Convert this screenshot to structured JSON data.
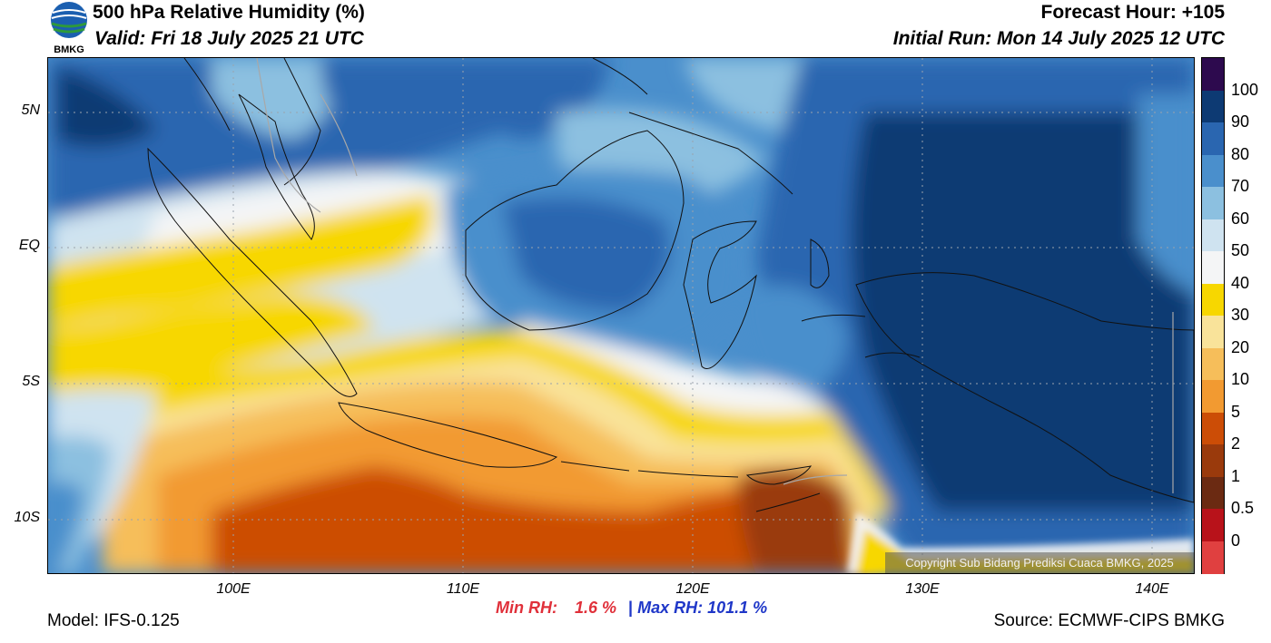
{
  "header": {
    "title": "500 hPa Relative Humidity (%)",
    "valid": "Valid: Fri 18 July 2025 21 UTC",
    "forecast_hour": "Forecast Hour: +105",
    "initial_run": "Initial Run: Mon 14 July 2025 12 UTC"
  },
  "logo": {
    "text": "BMKG",
    "icon": "bmkg-logo-icon"
  },
  "axes": {
    "lat_labels": [
      "5N",
      "EQ",
      "5S",
      "10S"
    ],
    "lon_labels": [
      "100E",
      "110E",
      "120E",
      "130E",
      "140E"
    ]
  },
  "colorbar": {
    "levels": [
      "100",
      "90",
      "80",
      "70",
      "60",
      "50",
      "40",
      "30",
      "20",
      "10",
      "5",
      "2",
      "1",
      "0.5",
      "0"
    ],
    "colors": [
      "#2d0a4e",
      "#0d3a73",
      "#2a66b0",
      "#4a8fcc",
      "#8cc0e0",
      "#cfe3f0",
      "#f4f5f6",
      "#f7d700",
      "#f9e39a",
      "#f6be5a",
      "#f29a31",
      "#cc4d06",
      "#9a3a0c",
      "#6b2a12",
      "#b8121a",
      "#e04040"
    ]
  },
  "stats": {
    "min_label": "Min RH:",
    "min_value": "1.6 %",
    "separator": "|",
    "max_label": "Max RH:",
    "max_value": "101.1 %"
  },
  "footer": {
    "model": "Model: IFS-0.125",
    "source": "Source: ECMWF-CIPS BMKG",
    "copyright": "Copyright Sub Bidang Prediksi Cuaca BMKG, 2025"
  }
}
